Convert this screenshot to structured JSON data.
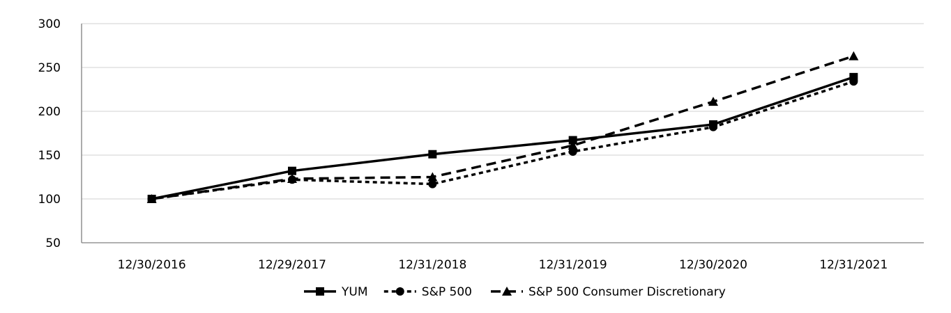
{
  "chart_data": {
    "type": "line",
    "title": "",
    "xlabel": "",
    "ylabel": "",
    "categories": [
      "12/30/2016",
      "12/29/2017",
      "12/31/2018",
      "12/31/2019",
      "12/30/2020",
      "12/31/2021"
    ],
    "ylim": [
      50,
      300
    ],
    "yticks": [
      50,
      100,
      150,
      200,
      250,
      300
    ],
    "grid": true,
    "legend_position": "bottom",
    "series": [
      {
        "name": "YUM",
        "marker": "square",
        "dash": "solid",
        "values": [
          100,
          132,
          151,
          167,
          185,
          239
        ]
      },
      {
        "name": "S&P 500",
        "marker": "circle",
        "dash": "dotted",
        "values": [
          100,
          122,
          117,
          154,
          182,
          234
        ]
      },
      {
        "name": "S&P 500 Consumer Discretionary",
        "marker": "triangle",
        "dash": "dashed",
        "values": [
          100,
          123,
          125,
          161,
          211,
          263
        ]
      }
    ],
    "colors": {
      "line": "#000000",
      "grid": "#d9d9d9",
      "axis": "#808080"
    }
  }
}
